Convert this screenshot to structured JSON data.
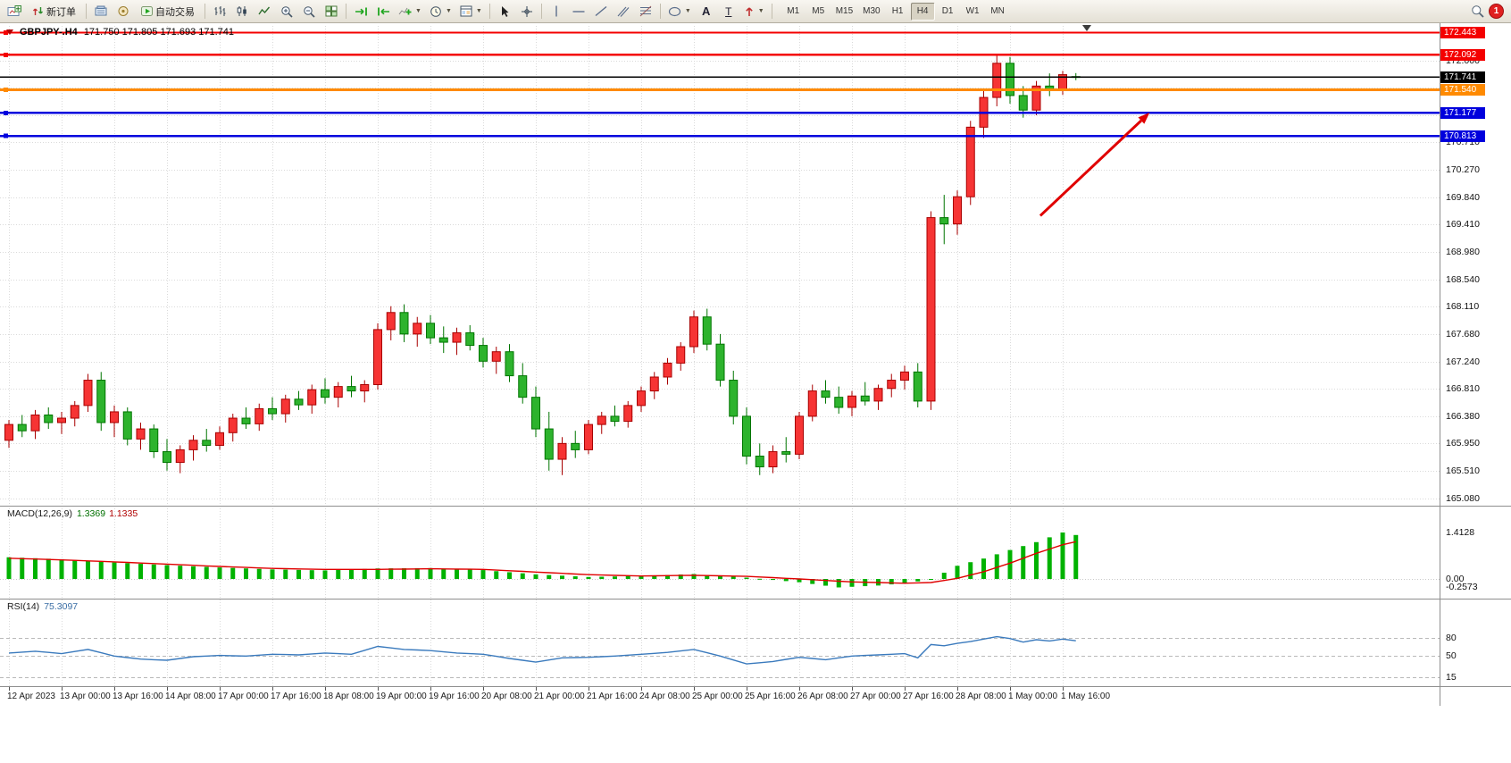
{
  "toolbar": {
    "new_order_label": "新订单",
    "autotrading_label": "自动交易",
    "text_tool_label": "A",
    "text_label_tool_label": "T",
    "timeframe_group": [
      "M1",
      "M5",
      "M15",
      "M30",
      "H1",
      "H4",
      "D1",
      "W1",
      "MN"
    ],
    "active_timeframe": "H4",
    "notification_badge": "1"
  },
  "chart": {
    "title_symbol": "GBPJPY-.H4",
    "title_ohlc": "171.750 171.805 171.693 171.741",
    "macd_label": "MACD(12,26,9)",
    "macd_value_main": "1.3369",
    "macd_value_signal": "1.1335",
    "rsi_label": "RSI(14)",
    "rsi_value": "75.3097"
  },
  "chart_data": {
    "type": "candlestick",
    "symbol": "GBPJPY",
    "timeframe": "H4",
    "up_candle": {
      "fill": "#f63434",
      "stroke": "#a80000"
    },
    "down_candle": {
      "fill": "#2db32d",
      "stroke": "#007500"
    },
    "y_ticks": [
      "172.000",
      "171.570",
      "171.140",
      "170.710",
      "170.270",
      "169.840",
      "169.410",
      "168.980",
      "168.540",
      "168.110",
      "167.680",
      "167.240",
      "166.810",
      "166.380",
      "165.950",
      "165.510",
      "165.080"
    ],
    "x_ticks": [
      [
        0,
        "12 Apr 2023"
      ],
      [
        4,
        "13 Apr 00:00"
      ],
      [
        8,
        "13 Apr 16:00"
      ],
      [
        12,
        "14 Apr 08:00"
      ],
      [
        16,
        "17 Apr 00:00"
      ],
      [
        20,
        "17 Apr 16:00"
      ],
      [
        24,
        "18 Apr 08:00"
      ],
      [
        28,
        "19 Apr 00:00"
      ],
      [
        32,
        "19 Apr 16:00"
      ],
      [
        36,
        "20 Apr 08:00"
      ],
      [
        40,
        "21 Apr 00:00"
      ],
      [
        44,
        "21 Apr 16:00"
      ],
      [
        48,
        "24 Apr 08:00"
      ],
      [
        52,
        "25 Apr 00:00"
      ],
      [
        56,
        "25 Apr 16:00"
      ],
      [
        60,
        "26 Apr 08:00"
      ],
      [
        64,
        "27 Apr 00:00"
      ],
      [
        68,
        "27 Apr 16:00"
      ],
      [
        72,
        "28 Apr 08:00"
      ],
      [
        76,
        "1 May 00:00"
      ],
      [
        80,
        "1 May 16:00"
      ]
    ],
    "candles": [
      [
        166.0,
        166.32,
        165.88,
        166.25
      ],
      [
        166.25,
        166.4,
        166.05,
        166.15
      ],
      [
        166.15,
        166.48,
        166.02,
        166.4
      ],
      [
        166.4,
        166.52,
        166.18,
        166.28
      ],
      [
        166.28,
        166.45,
        166.1,
        166.35
      ],
      [
        166.35,
        166.62,
        166.22,
        166.55
      ],
      [
        166.55,
        167.05,
        166.45,
        166.95
      ],
      [
        166.95,
        167.08,
        166.15,
        166.28
      ],
      [
        166.28,
        166.55,
        166.05,
        166.45
      ],
      [
        166.45,
        166.52,
        165.92,
        166.02
      ],
      [
        166.02,
        166.28,
        165.85,
        166.18
      ],
      [
        166.18,
        166.25,
        165.72,
        165.82
      ],
      [
        165.82,
        166.02,
        165.52,
        165.65
      ],
      [
        165.65,
        165.92,
        165.48,
        165.85
      ],
      [
        165.85,
        166.08,
        165.68,
        166.0
      ],
      [
        166.0,
        166.18,
        165.82,
        165.92
      ],
      [
        165.92,
        166.22,
        165.85,
        166.12
      ],
      [
        166.12,
        166.42,
        165.98,
        166.35
      ],
      [
        166.35,
        166.52,
        166.18,
        166.26
      ],
      [
        166.26,
        166.58,
        166.15,
        166.5
      ],
      [
        166.5,
        166.68,
        166.32,
        166.42
      ],
      [
        166.42,
        166.72,
        166.28,
        166.65
      ],
      [
        166.65,
        166.78,
        166.48,
        166.56
      ],
      [
        166.56,
        166.88,
        166.42,
        166.8
      ],
      [
        166.8,
        166.98,
        166.58,
        166.68
      ],
      [
        166.68,
        166.92,
        166.52,
        166.85
      ],
      [
        166.85,
        167.02,
        166.68,
        166.78
      ],
      [
        166.78,
        166.95,
        166.6,
        166.88
      ],
      [
        166.88,
        167.85,
        166.8,
        167.75
      ],
      [
        167.75,
        168.12,
        167.58,
        168.02
      ],
      [
        168.02,
        168.15,
        167.55,
        167.68
      ],
      [
        167.68,
        167.95,
        167.48,
        167.85
      ],
      [
        167.85,
        167.98,
        167.52,
        167.62
      ],
      [
        167.62,
        167.8,
        167.38,
        167.55
      ],
      [
        167.55,
        167.78,
        167.35,
        167.7
      ],
      [
        167.7,
        167.82,
        167.42,
        167.5
      ],
      [
        167.5,
        167.62,
        167.15,
        167.25
      ],
      [
        167.25,
        167.48,
        167.05,
        167.4
      ],
      [
        167.4,
        167.52,
        166.92,
        167.02
      ],
      [
        167.02,
        167.22,
        166.58,
        166.68
      ],
      [
        166.68,
        166.85,
        166.05,
        166.18
      ],
      [
        166.18,
        166.45,
        165.52,
        165.7
      ],
      [
        165.7,
        166.05,
        165.45,
        165.95
      ],
      [
        165.95,
        166.15,
        165.72,
        165.85
      ],
      [
        165.85,
        166.32,
        165.78,
        166.25
      ],
      [
        166.25,
        166.45,
        166.1,
        166.38
      ],
      [
        166.38,
        166.55,
        166.22,
        166.3
      ],
      [
        166.3,
        166.62,
        166.2,
        166.55
      ],
      [
        166.55,
        166.85,
        166.45,
        166.78
      ],
      [
        166.78,
        167.08,
        166.65,
        167.0
      ],
      [
        167.0,
        167.3,
        166.88,
        167.22
      ],
      [
        167.22,
        167.55,
        167.1,
        167.48
      ],
      [
        167.48,
        168.05,
        167.38,
        167.95
      ],
      [
        167.95,
        168.08,
        167.42,
        167.52
      ],
      [
        167.52,
        167.68,
        166.85,
        166.95
      ],
      [
        166.95,
        167.1,
        166.25,
        166.38
      ],
      [
        166.38,
        166.52,
        165.62,
        165.75
      ],
      [
        165.75,
        165.95,
        165.45,
        165.58
      ],
      [
        165.58,
        165.92,
        165.48,
        165.82
      ],
      [
        165.82,
        166.05,
        165.65,
        165.78
      ],
      [
        165.78,
        166.45,
        165.7,
        166.38
      ],
      [
        166.38,
        166.88,
        166.3,
        166.78
      ],
      [
        166.78,
        166.95,
        166.58,
        166.68
      ],
      [
        166.68,
        166.85,
        166.42,
        166.52
      ],
      [
        166.52,
        166.78,
        166.38,
        166.7
      ],
      [
        166.7,
        166.92,
        166.55,
        166.62
      ],
      [
        166.62,
        166.88,
        166.48,
        166.82
      ],
      [
        166.82,
        167.05,
        166.68,
        166.95
      ],
      [
        166.95,
        167.18,
        166.8,
        167.08
      ],
      [
        167.08,
        167.22,
        166.52,
        166.62
      ],
      [
        166.62,
        169.62,
        166.48,
        169.52
      ],
      [
        169.52,
        169.88,
        169.1,
        169.42
      ],
      [
        169.42,
        169.95,
        169.25,
        169.85
      ],
      [
        169.85,
        171.05,
        169.72,
        170.95
      ],
      [
        170.95,
        171.52,
        170.78,
        171.42
      ],
      [
        171.42,
        172.09,
        171.28,
        171.96
      ],
      [
        171.96,
        172.06,
        171.32,
        171.45
      ],
      [
        171.45,
        171.6,
        171.1,
        171.22
      ],
      [
        171.22,
        171.68,
        171.14,
        171.6
      ],
      [
        171.6,
        171.8,
        171.44,
        171.54
      ],
      [
        171.54,
        171.84,
        171.46,
        171.78
      ],
      [
        171.75,
        171.805,
        171.693,
        171.741
      ]
    ],
    "price_lines": [
      {
        "value": 172.443,
        "label": "172.443",
        "color": "#f40000",
        "width": 2,
        "handle": true
      },
      {
        "value": 172.092,
        "label": "172.092",
        "color": "#f40000",
        "width": 2.5,
        "handle": true
      },
      {
        "value": 171.741,
        "label": "171.741",
        "color": "#000000",
        "width": 1.2,
        "handle": false,
        "role": "current-price"
      },
      {
        "value": 171.54,
        "label": "171.540",
        "color": "#ff8a00",
        "width": 3,
        "handle": true
      },
      {
        "value": 171.177,
        "label": "171.177",
        "color": "#0000dd",
        "width": 2.5,
        "handle": true
      },
      {
        "value": 170.813,
        "label": "170.813",
        "color": "#0000dd",
        "width": 2.5,
        "handle": true
      }
    ],
    "arrow": {
      "from_index": 78.3,
      "from_price": 169.55,
      "to_index": 86.6,
      "to_price": 171.18,
      "color": "#e00000",
      "width": 3
    },
    "indicators": [
      {
        "name": "MACD",
        "params": "12,26,9",
        "axis_labels": [
          "1.4128",
          "0.00",
          "-0.2573"
        ],
        "histogram_color": "#00b200",
        "signal_color": "#e00000",
        "histogram_points": [
          [
            0,
            0.66
          ],
          [
            4,
            0.6
          ],
          [
            8,
            0.5
          ],
          [
            12,
            0.42
          ],
          [
            16,
            0.35
          ],
          [
            20,
            0.29
          ],
          [
            24,
            0.26
          ],
          [
            28,
            0.32
          ],
          [
            32,
            0.33
          ],
          [
            36,
            0.27
          ],
          [
            40,
            0.14
          ],
          [
            44,
            0.06
          ],
          [
            48,
            0.09
          ],
          [
            52,
            0.15
          ],
          [
            56,
            0.04
          ],
          [
            60,
            -0.1
          ],
          [
            63,
            -0.2573
          ],
          [
            66,
            -0.2
          ],
          [
            68,
            -0.13
          ],
          [
            70,
            -0.02
          ],
          [
            72,
            0.4
          ],
          [
            74,
            0.62
          ],
          [
            76,
            0.88
          ],
          [
            78,
            1.12
          ],
          [
            80,
            1.4128
          ],
          [
            81,
            1.3369
          ]
        ],
        "signal_points": [
          [
            0,
            0.63
          ],
          [
            4,
            0.58
          ],
          [
            8,
            0.52
          ],
          [
            12,
            0.45
          ],
          [
            16,
            0.38
          ],
          [
            20,
            0.32
          ],
          [
            24,
            0.29
          ],
          [
            28,
            0.29
          ],
          [
            32,
            0.31
          ],
          [
            36,
            0.29
          ],
          [
            40,
            0.21
          ],
          [
            44,
            0.13
          ],
          [
            48,
            0.09
          ],
          [
            52,
            0.11
          ],
          [
            56,
            0.08
          ],
          [
            60,
            0.0
          ],
          [
            64,
            -0.09
          ],
          [
            68,
            -0.13
          ],
          [
            70,
            -0.11
          ],
          [
            72,
            0.02
          ],
          [
            74,
            0.22
          ],
          [
            76,
            0.48
          ],
          [
            78,
            0.78
          ],
          [
            80,
            1.04
          ],
          [
            81,
            1.1335
          ]
        ]
      },
      {
        "name": "RSI",
        "params": "14",
        "levels": [
          "80",
          "50",
          "15"
        ],
        "line_color": "#3a7abd",
        "line_points": [
          [
            0,
            55
          ],
          [
            2,
            58
          ],
          [
            4,
            54
          ],
          [
            6,
            61
          ],
          [
            8,
            50
          ],
          [
            10,
            45
          ],
          [
            12,
            43
          ],
          [
            14,
            49
          ],
          [
            16,
            51
          ],
          [
            18,
            50
          ],
          [
            20,
            53
          ],
          [
            22,
            52
          ],
          [
            24,
            55
          ],
          [
            26,
            53
          ],
          [
            28,
            66
          ],
          [
            30,
            61
          ],
          [
            32,
            59
          ],
          [
            34,
            55
          ],
          [
            36,
            53
          ],
          [
            38,
            46
          ],
          [
            40,
            40
          ],
          [
            42,
            47
          ],
          [
            44,
            48
          ],
          [
            46,
            50
          ],
          [
            48,
            53
          ],
          [
            50,
            56
          ],
          [
            52,
            61
          ],
          [
            54,
            50
          ],
          [
            56,
            37
          ],
          [
            58,
            41
          ],
          [
            60,
            48
          ],
          [
            62,
            44
          ],
          [
            64,
            50
          ],
          [
            66,
            52
          ],
          [
            68,
            54
          ],
          [
            69,
            47
          ],
          [
            70,
            69
          ],
          [
            71,
            67
          ],
          [
            72,
            71
          ],
          [
            73,
            74
          ],
          [
            74,
            78
          ],
          [
            75,
            82
          ],
          [
            76,
            79
          ],
          [
            77,
            73
          ],
          [
            78,
            77
          ],
          [
            79,
            75
          ],
          [
            80,
            78
          ],
          [
            81,
            75.31
          ]
        ]
      }
    ]
  }
}
